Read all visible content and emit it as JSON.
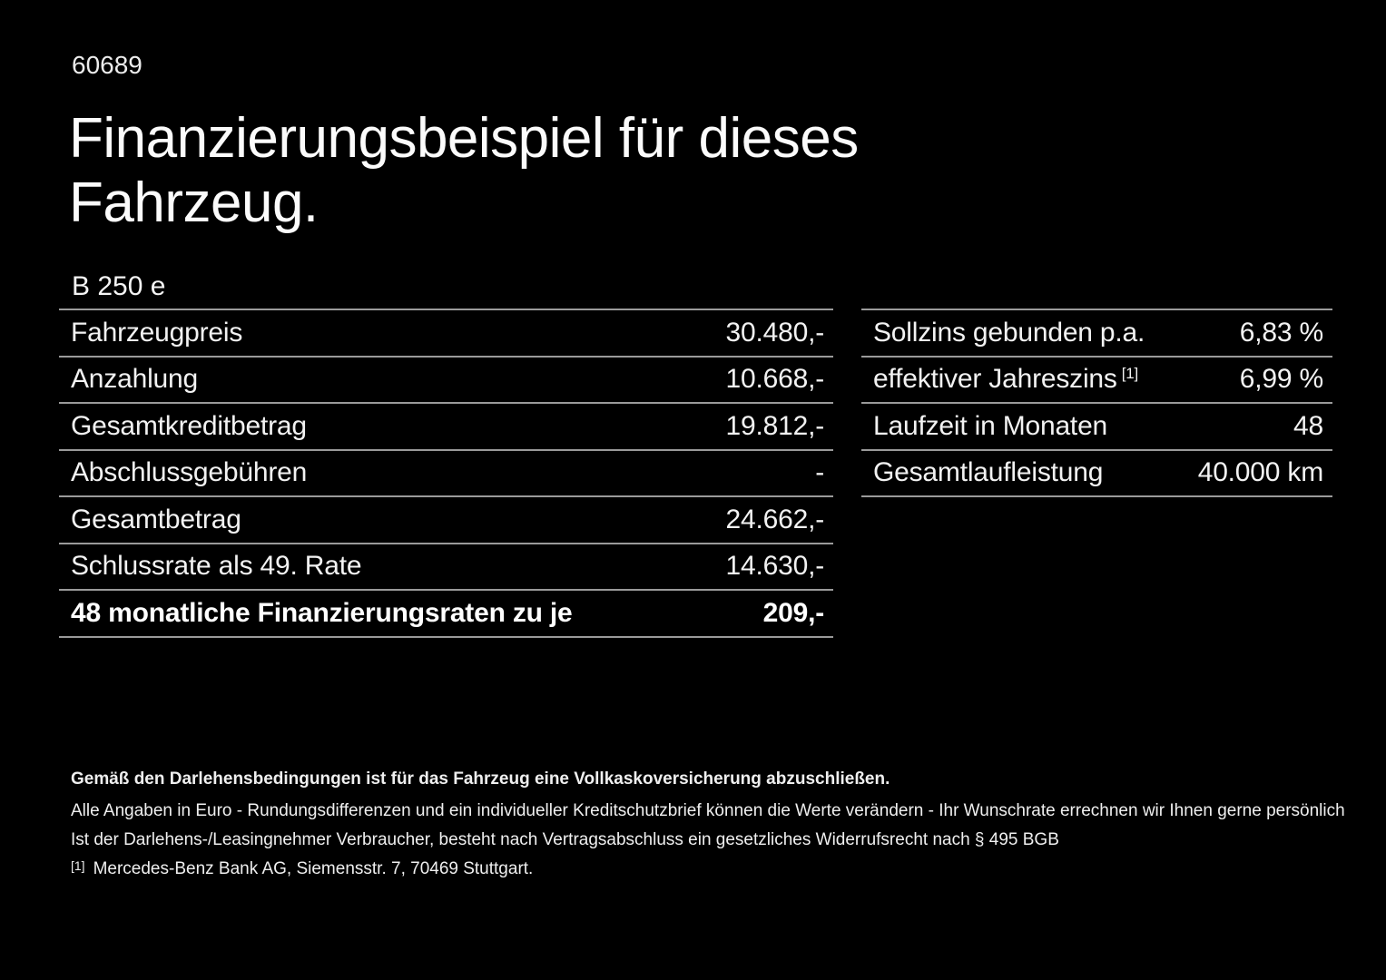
{
  "page": {
    "doc_number": "60689",
    "title_line1": "Finanzierungsbeispiel für dieses",
    "title_line2": "Fahrzeug.",
    "model": "B 250 e"
  },
  "left_table": {
    "rows": [
      {
        "label": "Fahrzeugpreis",
        "value": "30.480,-"
      },
      {
        "label": "Anzahlung",
        "value": "10.668,-"
      },
      {
        "label": "Gesamtkreditbetrag",
        "value": "19.812,-"
      },
      {
        "label": "Abschlussgebühren",
        "value": "-"
      },
      {
        "label": "Gesamtbetrag",
        "value": "24.662,-"
      },
      {
        "label": "Schlussrate als 49. Rate",
        "value": "14.630,-"
      },
      {
        "label": "48 monatliche Finanzierungsraten zu je",
        "value": "209,-",
        "emphasis": true
      }
    ]
  },
  "right_table": {
    "rows": [
      {
        "label": "Sollzins gebunden p.a.",
        "value": "6,83 %"
      },
      {
        "label": "effektiver Jahreszins",
        "sup": "[1]",
        "value": "6,99 %"
      },
      {
        "label": "Laufzeit in Monaten",
        "value": "48"
      },
      {
        "label": "Gesamtlaufleistung",
        "value": "40.000 km"
      }
    ]
  },
  "footer": {
    "line1": "Gemäß den Darlehensbedingungen ist für das Fahrzeug eine Vollkaskoversicherung abzuschließen.",
    "line2": "Alle Angaben in Euro - Rundungsdifferenzen und ein individueller Kreditschutzbrief können die Werte verändern - Ihr Wunschrate errechnen wir Ihnen gerne persönlich",
    "line3": "Ist der Darlehens-/Leasingnehmer Verbraucher, besteht nach Vertragsabschluss ein gesetzliches Widerrufsrecht nach § 495 BGB",
    "footnote_marker": "[1]",
    "footnote_text": "Mercedes-Benz Bank AG, Siemensstr. 7, 70469 Stuttgart."
  },
  "colors": {
    "background": "#000000",
    "text": "#f2f2f2",
    "divider": "#9a9a9a"
  }
}
